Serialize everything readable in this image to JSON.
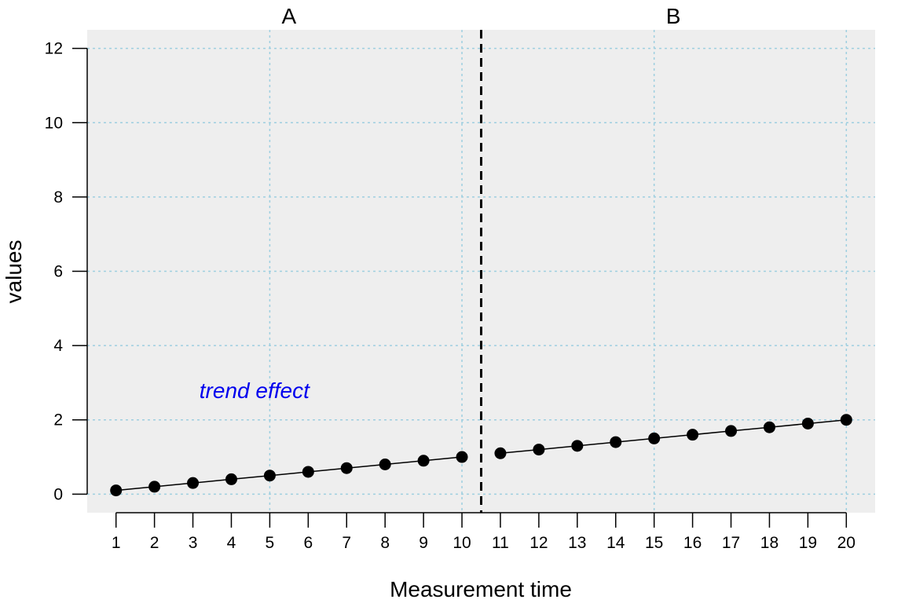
{
  "chart_data": {
    "type": "line",
    "xlabel": "Measurement time",
    "ylabel": "values",
    "x": [
      1,
      2,
      3,
      4,
      5,
      6,
      7,
      8,
      9,
      10,
      11,
      12,
      13,
      14,
      15,
      16,
      17,
      18,
      19,
      20
    ],
    "xlim": [
      0.25,
      20.75
    ],
    "ylim": [
      -0.5,
      12.5
    ],
    "x_ticks": [
      "1",
      "2",
      "3",
      "4",
      "5",
      "6",
      "7",
      "8",
      "9",
      "10",
      "11",
      "12",
      "13",
      "14",
      "15",
      "16",
      "17",
      "18",
      "19",
      "20"
    ],
    "y_ticks": [
      0,
      2,
      4,
      6,
      8,
      10,
      12
    ],
    "y_tick_labels": [
      "0",
      "2",
      "4",
      "6",
      "8",
      "10",
      "12"
    ],
    "grid": true,
    "panel_color": "#eeeeee",
    "grid_color": "#9ecfe0",
    "phases": [
      {
        "label": "A",
        "x": [
          1,
          2,
          3,
          4,
          5,
          6,
          7,
          8,
          9,
          10
        ],
        "values": [
          0.1,
          0.2,
          0.3,
          0.4,
          0.5,
          0.6,
          0.7,
          0.8,
          0.9,
          1.0
        ]
      },
      {
        "label": "B",
        "x": [
          11,
          12,
          13,
          14,
          15,
          16,
          17,
          18,
          19,
          20
        ],
        "values": [
          1.1,
          1.2,
          1.3,
          1.4,
          1.5,
          1.6,
          1.7,
          1.8,
          1.9,
          2.0
        ]
      }
    ],
    "phase_separator_x": 10.5,
    "annotation": {
      "text": "trend effect",
      "x": 4.6,
      "y": 2.8,
      "color": "#0000ee"
    }
  }
}
